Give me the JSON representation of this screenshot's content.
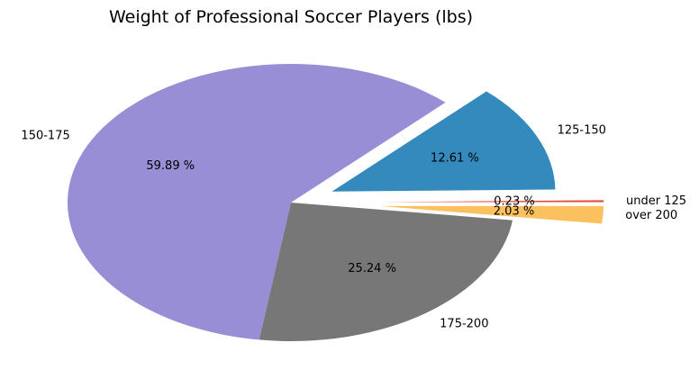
{
  "chart_data": {
    "type": "pie",
    "title": "Weight of Professional Soccer Players (lbs)",
    "slices": [
      {
        "label": "under 125",
        "value": 0.23,
        "pct_label": "0.23 %",
        "color": "#e24a33"
      },
      {
        "label": "125-150",
        "value": 12.61,
        "pct_label": "12.61 %",
        "color": "#348abd"
      },
      {
        "label": "150-175",
        "value": 59.89,
        "pct_label": "59.89 %",
        "color": "#988ed5"
      },
      {
        "label": "175-200",
        "value": 25.24,
        "pct_label": "25.24 %",
        "color": "#777777"
      },
      {
        "label": "over 200",
        "value": 2.03,
        "pct_label": "2.03 %",
        "color": "#fbc15e"
      }
    ],
    "explode": [
      0.4,
      0.2,
      0.0,
      0.0,
      0.4
    ],
    "start_angle_deg": 0,
    "direction": "counterclockwise",
    "legend": "none"
  }
}
